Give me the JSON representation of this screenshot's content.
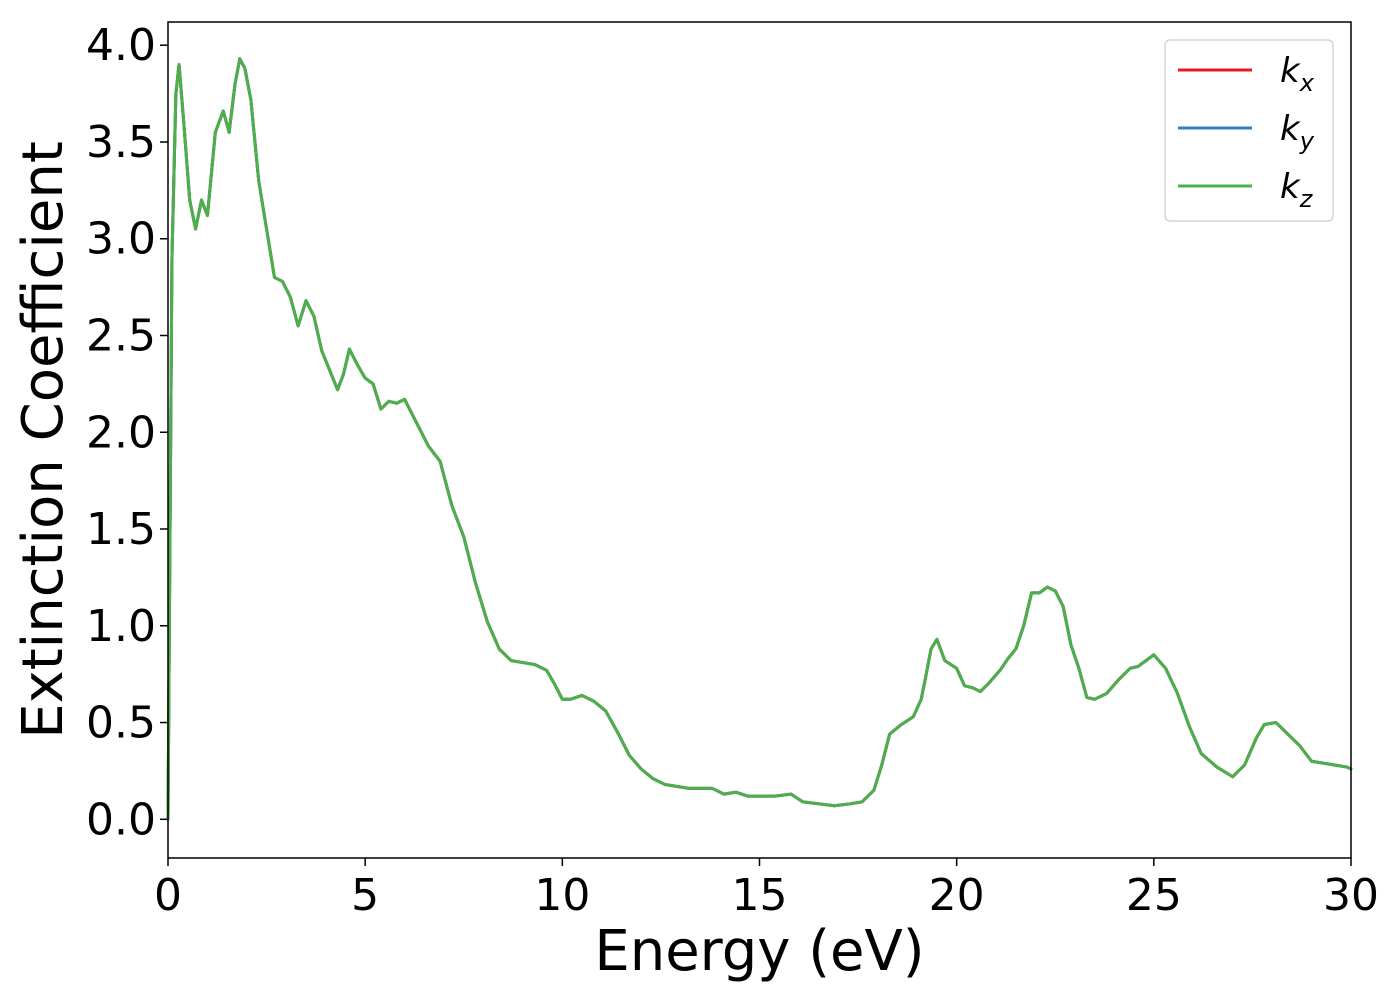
{
  "chart_data": {
    "type": "line",
    "title": "",
    "xlabel": "Energy (eV)",
    "ylabel": "Extinction Coefficient",
    "xlim": [
      0,
      30
    ],
    "ylim": [
      -0.2,
      4.12
    ],
    "xticks": [
      0,
      5,
      10,
      15,
      20,
      25,
      30
    ],
    "xtick_labels": [
      "0",
      "5",
      "10",
      "15",
      "20",
      "25",
      "30"
    ],
    "yticks": [
      0.0,
      0.5,
      1.0,
      1.5,
      2.0,
      2.5,
      3.0,
      3.5,
      4.0
    ],
    "ytick_labels": [
      "0.0",
      "0.5",
      "1.0",
      "1.5",
      "2.0",
      "2.5",
      "3.0",
      "3.5",
      "4.0"
    ],
    "grid": false,
    "legend_position": "top-right",
    "series": [
      {
        "name": "k_x",
        "legend_base": "k",
        "legend_sub": "x",
        "color": "#e41a1c",
        "x": [
          0.0,
          0.1,
          0.2,
          0.28,
          0.4,
          0.55,
          0.7,
          0.85,
          1.0,
          1.2,
          1.4,
          1.55,
          1.7,
          1.82,
          1.95,
          2.1,
          2.3,
          2.5,
          2.7,
          2.9,
          3.1,
          3.3,
          3.5,
          3.7,
          3.9,
          4.1,
          4.3,
          4.45,
          4.6,
          4.8,
          5.0,
          5.2,
          5.4,
          5.6,
          5.8,
          6.0,
          6.3,
          6.6,
          6.9,
          7.2,
          7.5,
          7.8,
          8.1,
          8.4,
          8.7,
          9.0,
          9.3,
          9.6,
          9.8,
          10.0,
          10.2,
          10.5,
          10.8,
          11.1,
          11.4,
          11.7,
          12.0,
          12.3,
          12.6,
          12.9,
          13.2,
          13.5,
          13.8,
          14.1,
          14.4,
          14.7,
          15.0,
          15.4,
          15.8,
          16.1,
          16.5,
          16.9,
          17.3,
          17.6,
          17.9,
          18.1,
          18.3,
          18.6,
          18.9,
          19.1,
          19.2,
          19.35,
          19.5,
          19.7,
          20.0,
          20.2,
          20.4,
          20.6,
          20.8,
          21.1,
          21.3,
          21.5,
          21.7,
          21.9,
          22.1,
          22.3,
          22.5,
          22.7,
          22.9,
          23.1,
          23.3,
          23.5,
          23.8,
          24.1,
          24.4,
          24.6,
          24.8,
          25.0,
          25.3,
          25.6,
          25.9,
          26.2,
          26.6,
          27.0,
          27.3,
          27.6,
          27.8,
          28.1,
          28.4,
          28.7,
          29.0,
          29.3,
          29.6,
          29.9,
          30.0
        ],
        "y": [
          0.0,
          2.9,
          3.75,
          3.9,
          3.6,
          3.2,
          3.05,
          3.2,
          3.12,
          3.55,
          3.66,
          3.55,
          3.8,
          3.93,
          3.88,
          3.72,
          3.3,
          3.05,
          2.8,
          2.78,
          2.7,
          2.55,
          2.68,
          2.6,
          2.42,
          2.32,
          2.22,
          2.3,
          2.43,
          2.35,
          2.28,
          2.25,
          2.12,
          2.16,
          2.15,
          2.17,
          2.05,
          1.93,
          1.85,
          1.62,
          1.46,
          1.22,
          1.02,
          0.88,
          0.82,
          0.81,
          0.8,
          0.77,
          0.7,
          0.62,
          0.62,
          0.64,
          0.61,
          0.56,
          0.45,
          0.33,
          0.26,
          0.21,
          0.18,
          0.17,
          0.16,
          0.16,
          0.16,
          0.13,
          0.14,
          0.12,
          0.12,
          0.12,
          0.13,
          0.09,
          0.08,
          0.07,
          0.08,
          0.09,
          0.15,
          0.28,
          0.44,
          0.49,
          0.53,
          0.62,
          0.72,
          0.88,
          0.93,
          0.82,
          0.78,
          0.69,
          0.68,
          0.66,
          0.7,
          0.77,
          0.83,
          0.88,
          1.0,
          1.17,
          1.17,
          1.2,
          1.18,
          1.1,
          0.9,
          0.78,
          0.63,
          0.62,
          0.65,
          0.72,
          0.78,
          0.79,
          0.82,
          0.85,
          0.78,
          0.65,
          0.48,
          0.34,
          0.27,
          0.22,
          0.28,
          0.42,
          0.49,
          0.5,
          0.44,
          0.38,
          0.3,
          0.29,
          0.28,
          0.27,
          0.26
        ]
      },
      {
        "name": "k_y",
        "legend_base": "k",
        "legend_sub": "y",
        "color": "#377eb8",
        "x": [
          0.0,
          0.1,
          0.2,
          0.28,
          0.4,
          0.55,
          0.7,
          0.85,
          1.0,
          1.2,
          1.4,
          1.55,
          1.7,
          1.82,
          1.95,
          2.1,
          2.3,
          2.5,
          2.7,
          2.9,
          3.1,
          3.3,
          3.5,
          3.7,
          3.9,
          4.1,
          4.3,
          4.45,
          4.6,
          4.8,
          5.0,
          5.2,
          5.4,
          5.6,
          5.8,
          6.0,
          6.3,
          6.6,
          6.9,
          7.2,
          7.5,
          7.8,
          8.1,
          8.4,
          8.7,
          9.0,
          9.3,
          9.6,
          9.8,
          10.0,
          10.2,
          10.5,
          10.8,
          11.1,
          11.4,
          11.7,
          12.0,
          12.3,
          12.6,
          12.9,
          13.2,
          13.5,
          13.8,
          14.1,
          14.4,
          14.7,
          15.0,
          15.4,
          15.8,
          16.1,
          16.5,
          16.9,
          17.3,
          17.6,
          17.9,
          18.1,
          18.3,
          18.6,
          18.9,
          19.1,
          19.2,
          19.35,
          19.5,
          19.7,
          20.0,
          20.2,
          20.4,
          20.6,
          20.8,
          21.1,
          21.3,
          21.5,
          21.7,
          21.9,
          22.1,
          22.3,
          22.5,
          22.7,
          22.9,
          23.1,
          23.3,
          23.5,
          23.8,
          24.1,
          24.4,
          24.6,
          24.8,
          25.0,
          25.3,
          25.6,
          25.9,
          26.2,
          26.6,
          27.0,
          27.3,
          27.6,
          27.8,
          28.1,
          28.4,
          28.7,
          29.0,
          29.3,
          29.6,
          29.9,
          30.0
        ],
        "y": [
          0.0,
          2.9,
          3.75,
          3.9,
          3.6,
          3.2,
          3.05,
          3.2,
          3.12,
          3.55,
          3.66,
          3.55,
          3.8,
          3.93,
          3.88,
          3.72,
          3.3,
          3.05,
          2.8,
          2.78,
          2.7,
          2.55,
          2.68,
          2.6,
          2.42,
          2.32,
          2.22,
          2.3,
          2.43,
          2.35,
          2.28,
          2.25,
          2.12,
          2.16,
          2.15,
          2.17,
          2.05,
          1.93,
          1.85,
          1.62,
          1.46,
          1.22,
          1.02,
          0.88,
          0.82,
          0.81,
          0.8,
          0.77,
          0.7,
          0.62,
          0.62,
          0.64,
          0.61,
          0.56,
          0.45,
          0.33,
          0.26,
          0.21,
          0.18,
          0.17,
          0.16,
          0.16,
          0.16,
          0.13,
          0.14,
          0.12,
          0.12,
          0.12,
          0.13,
          0.09,
          0.08,
          0.07,
          0.08,
          0.09,
          0.15,
          0.28,
          0.44,
          0.49,
          0.53,
          0.62,
          0.72,
          0.88,
          0.93,
          0.82,
          0.78,
          0.69,
          0.68,
          0.66,
          0.7,
          0.77,
          0.83,
          0.88,
          1.0,
          1.17,
          1.17,
          1.2,
          1.18,
          1.1,
          0.9,
          0.78,
          0.63,
          0.62,
          0.65,
          0.72,
          0.78,
          0.79,
          0.82,
          0.85,
          0.78,
          0.65,
          0.48,
          0.34,
          0.27,
          0.22,
          0.28,
          0.42,
          0.49,
          0.5,
          0.44,
          0.38,
          0.3,
          0.29,
          0.28,
          0.27,
          0.26
        ]
      },
      {
        "name": "k_z",
        "legend_base": "k",
        "legend_sub": "z",
        "color": "#4daf4a",
        "x": [
          0.0,
          0.1,
          0.2,
          0.28,
          0.4,
          0.55,
          0.7,
          0.85,
          1.0,
          1.2,
          1.4,
          1.55,
          1.7,
          1.82,
          1.95,
          2.1,
          2.3,
          2.5,
          2.7,
          2.9,
          3.1,
          3.3,
          3.5,
          3.7,
          3.9,
          4.1,
          4.3,
          4.45,
          4.6,
          4.8,
          5.0,
          5.2,
          5.4,
          5.6,
          5.8,
          6.0,
          6.3,
          6.6,
          6.9,
          7.2,
          7.5,
          7.8,
          8.1,
          8.4,
          8.7,
          9.0,
          9.3,
          9.6,
          9.8,
          10.0,
          10.2,
          10.5,
          10.8,
          11.1,
          11.4,
          11.7,
          12.0,
          12.3,
          12.6,
          12.9,
          13.2,
          13.5,
          13.8,
          14.1,
          14.4,
          14.7,
          15.0,
          15.4,
          15.8,
          16.1,
          16.5,
          16.9,
          17.3,
          17.6,
          17.9,
          18.1,
          18.3,
          18.6,
          18.9,
          19.1,
          19.2,
          19.35,
          19.5,
          19.7,
          20.0,
          20.2,
          20.4,
          20.6,
          20.8,
          21.1,
          21.3,
          21.5,
          21.7,
          21.9,
          22.1,
          22.3,
          22.5,
          22.7,
          22.9,
          23.1,
          23.3,
          23.5,
          23.8,
          24.1,
          24.4,
          24.6,
          24.8,
          25.0,
          25.3,
          25.6,
          25.9,
          26.2,
          26.6,
          27.0,
          27.3,
          27.6,
          27.8,
          28.1,
          28.4,
          28.7,
          29.0,
          29.3,
          29.6,
          29.9,
          30.0
        ],
        "y": [
          0.0,
          2.9,
          3.75,
          3.9,
          3.6,
          3.2,
          3.05,
          3.2,
          3.12,
          3.55,
          3.66,
          3.55,
          3.8,
          3.93,
          3.88,
          3.72,
          3.3,
          3.05,
          2.8,
          2.78,
          2.7,
          2.55,
          2.68,
          2.6,
          2.42,
          2.32,
          2.22,
          2.3,
          2.43,
          2.35,
          2.28,
          2.25,
          2.12,
          2.16,
          2.15,
          2.17,
          2.05,
          1.93,
          1.85,
          1.62,
          1.46,
          1.22,
          1.02,
          0.88,
          0.82,
          0.81,
          0.8,
          0.77,
          0.7,
          0.62,
          0.62,
          0.64,
          0.61,
          0.56,
          0.45,
          0.33,
          0.26,
          0.21,
          0.18,
          0.17,
          0.16,
          0.16,
          0.16,
          0.13,
          0.14,
          0.12,
          0.12,
          0.12,
          0.13,
          0.09,
          0.08,
          0.07,
          0.08,
          0.09,
          0.15,
          0.28,
          0.44,
          0.49,
          0.53,
          0.62,
          0.72,
          0.88,
          0.93,
          0.82,
          0.78,
          0.69,
          0.68,
          0.66,
          0.7,
          0.77,
          0.83,
          0.88,
          1.0,
          1.17,
          1.17,
          1.2,
          1.18,
          1.1,
          0.9,
          0.78,
          0.63,
          0.62,
          0.65,
          0.72,
          0.78,
          0.79,
          0.82,
          0.85,
          0.78,
          0.65,
          0.48,
          0.34,
          0.27,
          0.22,
          0.28,
          0.42,
          0.49,
          0.5,
          0.44,
          0.38,
          0.3,
          0.29,
          0.28,
          0.27,
          0.26
        ]
      }
    ]
  }
}
